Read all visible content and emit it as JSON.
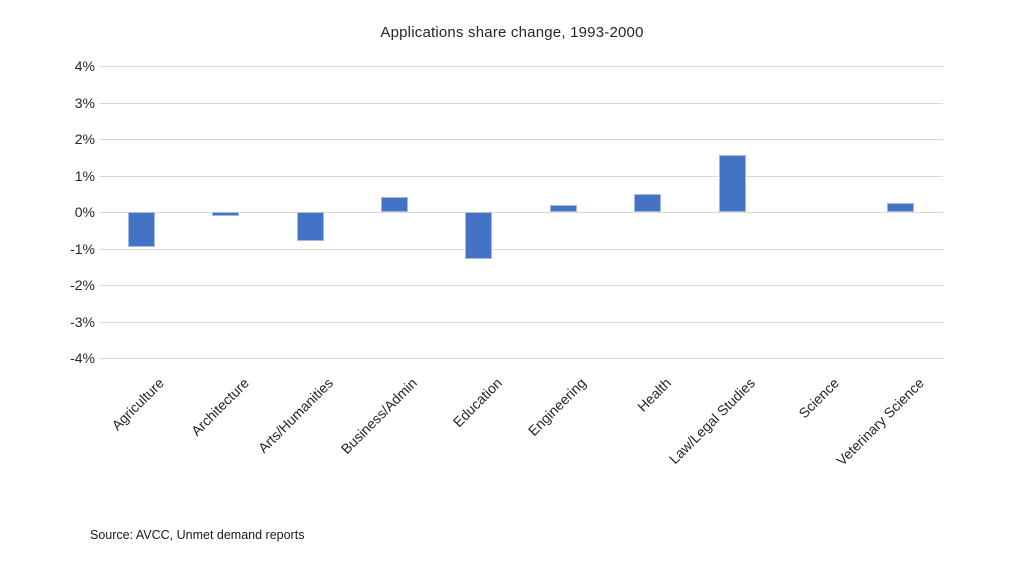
{
  "chart_data": {
    "type": "bar",
    "title": "Applications share change, 1993-2000",
    "categories": [
      "Agriculture",
      "Architecture",
      "Arts/Humanities",
      "Business/Admin",
      "Education",
      "Engineering",
      "Health",
      "Law/Legal Studies",
      "Science",
      "Veterinary Science"
    ],
    "values": [
      -0.95,
      -0.1,
      -0.8,
      0.4,
      -1.3,
      0.2,
      0.5,
      1.55,
      0,
      0.25
    ],
    "unit": "percent",
    "xlabel": "",
    "ylabel": "",
    "ylim": [
      -4,
      4
    ],
    "ytick_step": 1,
    "ytick_labels": [
      "4%",
      "3%",
      "2%",
      "1%",
      "0%",
      "-1%",
      "-2%",
      "-3%",
      "-4%"
    ],
    "grid": true,
    "legend_position": "none",
    "bar_color": "#4472C4",
    "bar_border_color": "#A3B8E2",
    "gridline_color": "#D9D9D9",
    "text_color": "#262626",
    "source_note": "Source: AVCC, Unmet demand reports"
  }
}
